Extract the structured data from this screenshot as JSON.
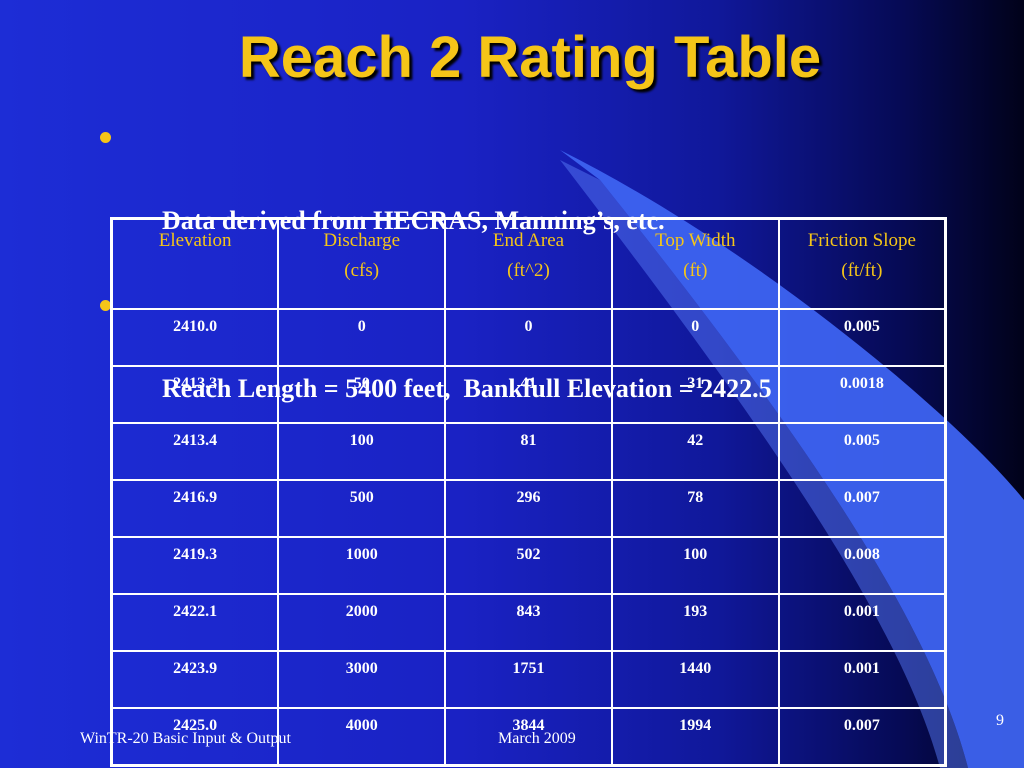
{
  "slide": {
    "title": "Reach 2 Rating Table",
    "bullets": [
      "Data derived from HECRAS, Manning’s, etc.",
      "Reach Length = 5400 feet,  Bankfull Elevation = 2422.5"
    ],
    "footer_left": "WinTR-20 Basic Input & Output",
    "footer_date": "March 2009",
    "page_number": "9"
  },
  "colors": {
    "title": "#f5c518",
    "bullet": "#f5c518",
    "header_text": "#f5c518",
    "background": "#1a22c4",
    "swoosh": "#3d63f0"
  },
  "table": {
    "headers": [
      {
        "line1": "Elevation",
        "line2": ""
      },
      {
        "line1": "Discharge",
        "line2": "(cfs)"
      },
      {
        "line1": "End Area",
        "line2": "(ft^2)"
      },
      {
        "line1": "Top Width",
        "line2": "(ft)"
      },
      {
        "line1": "Friction Slope",
        "line2": "(ft/ft)"
      }
    ],
    "rows": [
      [
        "2410.0",
        "0",
        "0",
        "0",
        "0.005"
      ],
      [
        "2413.3",
        "50",
        "41",
        "31",
        "0.0018"
      ],
      [
        "2413.4",
        "100",
        "81",
        "42",
        "0.005"
      ],
      [
        "2416.9",
        "500",
        "296",
        "78",
        "0.007"
      ],
      [
        "2419.3",
        "1000",
        "502",
        "100",
        "0.008"
      ],
      [
        "2422.1",
        "2000",
        "843",
        "193",
        "0.001"
      ],
      [
        "2423.9",
        "3000",
        "1751",
        "1440",
        "0.001"
      ],
      [
        "2425.0",
        "4000",
        "3844",
        "1994",
        "0.007"
      ]
    ]
  }
}
